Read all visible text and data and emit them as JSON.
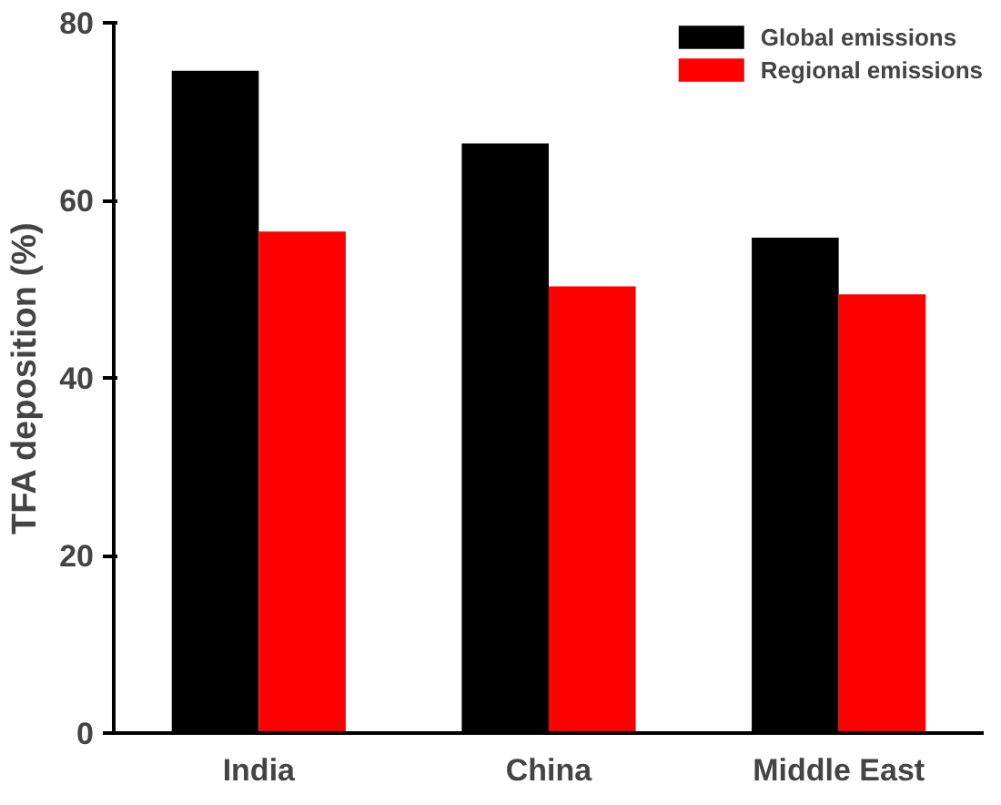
{
  "chart_data": {
    "type": "bar",
    "ylabel": "TFA deposition (%)",
    "categories": [
      "India",
      "China",
      "Middle East"
    ],
    "series": [
      {
        "name": "Global emissions",
        "color": "#000000",
        "values": [
          74.6,
          66.4,
          55.8
        ]
      },
      {
        "name": "Regional emissions",
        "color": "#ff0000",
        "values": [
          56.5,
          50.3,
          49.4
        ]
      }
    ],
    "ylim": [
      0,
      80
    ],
    "yticks": [
      0,
      20,
      40,
      60,
      80
    ],
    "legend": "top right"
  }
}
